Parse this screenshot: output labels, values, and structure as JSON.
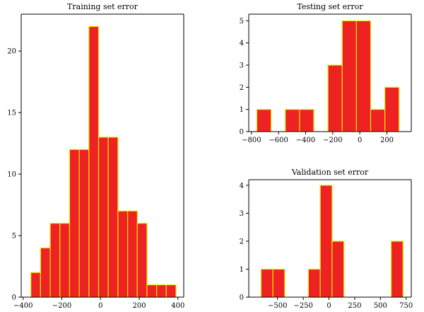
{
  "colors": {
    "bar_fill": "#ee2222",
    "bar_edge": "#e8e800"
  },
  "chart_data": [
    {
      "id": "training",
      "type": "bar",
      "title": "Training set error",
      "xlim": [
        -410,
        430
      ],
      "ylim": [
        0,
        23
      ],
      "xticks": [
        -400,
        -200,
        0,
        200,
        400
      ],
      "xtick_labels": [
        "−400",
        "−200",
        "0",
        "200",
        "400"
      ],
      "yticks": [
        0,
        5,
        10,
        15,
        20
      ],
      "ytick_labels": [
        "0",
        "5",
        "10",
        "15",
        "20"
      ],
      "bin_edges": [
        -360,
        -310,
        -260,
        -210,
        -160,
        -110,
        -60,
        -10,
        40,
        90,
        140,
        190,
        240,
        290,
        340,
        390
      ],
      "bins": [
        {
          "x0": -360,
          "x1": -310,
          "count": 2
        },
        {
          "x0": -310,
          "x1": -260,
          "count": 4
        },
        {
          "x0": -260,
          "x1": -210,
          "count": 6
        },
        {
          "x0": -210,
          "x1": -160,
          "count": 6
        },
        {
          "x0": -160,
          "x1": -110,
          "count": 12
        },
        {
          "x0": -110,
          "x1": -60,
          "count": 12
        },
        {
          "x0": -60,
          "x1": -10,
          "count": 22
        },
        {
          "x0": -10,
          "x1": 40,
          "count": 13
        },
        {
          "x0": 40,
          "x1": 90,
          "count": 13
        },
        {
          "x0": 90,
          "x1": 140,
          "count": 7
        },
        {
          "x0": 140,
          "x1": 190,
          "count": 7
        },
        {
          "x0": 190,
          "x1": 240,
          "count": 6
        },
        {
          "x0": 240,
          "x1": 290,
          "count": 1
        },
        {
          "x0": 290,
          "x1": 340,
          "count": 1
        },
        {
          "x0": 340,
          "x1": 390,
          "count": 1
        }
      ]
    },
    {
      "id": "testing",
      "type": "bar",
      "title": "Testing set error",
      "xlim": [
        -820,
        380
      ],
      "ylim": [
        0,
        5.3
      ],
      "xticks": [
        -800,
        -600,
        -400,
        -200,
        0,
        200
      ],
      "xtick_labels": [
        "−800",
        "−600",
        "−400",
        "−200",
        "0",
        "200"
      ],
      "yticks": [
        0,
        1,
        2,
        3,
        4,
        5
      ],
      "ytick_labels": [
        "0",
        "1",
        "2",
        "3",
        "4",
        "5"
      ],
      "bins": [
        {
          "x0": -760,
          "x1": -655,
          "count": 1
        },
        {
          "x0": -655,
          "x1": -550,
          "count": 0
        },
        {
          "x0": -550,
          "x1": -445,
          "count": 1
        },
        {
          "x0": -445,
          "x1": -340,
          "count": 1
        },
        {
          "x0": -340,
          "x1": -235,
          "count": 0
        },
        {
          "x0": -235,
          "x1": -130,
          "count": 3
        },
        {
          "x0": -130,
          "x1": -25,
          "count": 5
        },
        {
          "x0": -25,
          "x1": 80,
          "count": 5
        },
        {
          "x0": 80,
          "x1": 185,
          "count": 1
        },
        {
          "x0": 185,
          "x1": 290,
          "count": 2
        }
      ]
    },
    {
      "id": "validation",
      "type": "bar",
      "title": "Validation set error",
      "xlim": [
        -780,
        800
      ],
      "ylim": [
        0,
        4.2
      ],
      "xticks": [
        -500,
        -250,
        0,
        250,
        500,
        750
      ],
      "xtick_labels": [
        "−500",
        "−250",
        "0",
        "250",
        "500",
        "750"
      ],
      "yticks": [
        0,
        1,
        2,
        3,
        4
      ],
      "ytick_labels": [
        "0",
        "1",
        "2",
        "3",
        "4"
      ],
      "bins": [
        {
          "x0": -660,
          "x1": -545,
          "count": 1
        },
        {
          "x0": -545,
          "x1": -430,
          "count": 1
        },
        {
          "x0": -430,
          "x1": -315,
          "count": 0
        },
        {
          "x0": -315,
          "x1": -200,
          "count": 0
        },
        {
          "x0": -200,
          "x1": -85,
          "count": 1
        },
        {
          "x0": -85,
          "x1": 30,
          "count": 4
        },
        {
          "x0": 30,
          "x1": 145,
          "count": 2
        },
        {
          "x0": 145,
          "x1": 260,
          "count": 0
        },
        {
          "x0": 260,
          "x1": 375,
          "count": 0
        },
        {
          "x0": 375,
          "x1": 490,
          "count": 0
        },
        {
          "x0": 490,
          "x1": 605,
          "count": 0
        },
        {
          "x0": 605,
          "x1": 720,
          "count": 2
        }
      ]
    }
  ]
}
